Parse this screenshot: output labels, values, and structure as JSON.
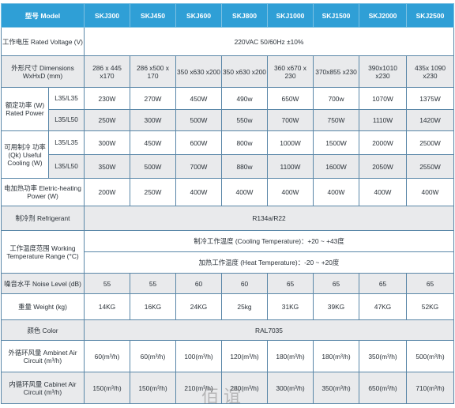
{
  "header": {
    "first": "型号 Model",
    "models": [
      "SKJ300",
      "SKJ450",
      "SKJ600",
      "SKJ800",
      "SKJ1000",
      "SKJ1500",
      "SKJ2000",
      "SKJ2500"
    ]
  },
  "rows": {
    "voltage": {
      "label": "工作电压 Rated Voltage (V)",
      "value": "220VAC 50/60Hz ±10%"
    },
    "dimensions": {
      "label": "外形尺寸 Dimensions WxHxD (mm)",
      "values": [
        "286 x 445 x170",
        "286 x500 x 170",
        "350 x630 x200",
        "350 x630 x200",
        "360 x670 x 230",
        "370x855 x230",
        "390x1010 x230",
        "435x 1090 x230"
      ]
    },
    "power": {
      "label": "额定功率 (W) Rated Power",
      "sub1": "L35/L35",
      "values1": [
        "230W",
        "270W",
        "450W",
        "490w",
        "650W",
        "700w",
        "1070W",
        "1375W"
      ],
      "sub2": "L35/L50",
      "values2": [
        "250W",
        "300W",
        "500W",
        "550w",
        "700W",
        "750W",
        "1110W",
        "1420W"
      ]
    },
    "cooling": {
      "label": "可用制冷 功率 (Qk) Useful Cooling (W)",
      "sub1": "L35/L35",
      "values1": [
        "300W",
        "450W",
        "600W",
        "800w",
        "1000W",
        "1500W",
        "2000W",
        "2500W"
      ],
      "sub2": "L35/L50",
      "values2": [
        "350W",
        "500W",
        "700W",
        "880w",
        "1100W",
        "1600W",
        "2050W",
        "2550W"
      ]
    },
    "heating": {
      "label": "电加热功率 Eletric-heating Power (W)",
      "values": [
        "200W",
        "250W",
        "400W",
        "400W",
        "400W",
        "400W",
        "400W",
        "400W"
      ]
    },
    "refrigerant": {
      "label": "制冷剂 Refrigerant",
      "value": "R134a/R22"
    },
    "temperature": {
      "label": "工作温度范围 Working Temperature Range (°C)",
      "cooling": "制冷工作温度 (Cooling Temperature)：+20 ~ +43度",
      "heating": "加热工作温度 (Heat Temperature)：-20 ~ +20度"
    },
    "noise": {
      "label": "噪音水平 Noise Level (dB)",
      "values": [
        "55",
        "55",
        "60",
        "60",
        "65",
        "65",
        "65",
        "65"
      ]
    },
    "weight": {
      "label": "重量 Weight (kg)",
      "values": [
        "14KG",
        "16KG",
        "24KG",
        "25kg",
        "31KG",
        "39KG",
        "47KG",
        "52KG"
      ]
    },
    "color": {
      "label": "颜色 Color",
      "value": "RAL7035"
    },
    "ambient_air": {
      "label": "外循环风量 Ambinet Air Circuit (m³/h)",
      "values": [
        "60(m³/h)",
        "60(m³/h)",
        "100(m³/h)",
        "120(m³/h)",
        "180(m³/h)",
        "180(m³/h)",
        "350(m³/h)",
        "500(m³/h)"
      ]
    },
    "cabinet_air": {
      "label": "内循环风量 Cabinet Air Circuit (m³/h)",
      "values": [
        "150(m³/h)",
        "150(m³/h)",
        "210(m³/h)",
        "280(m³/h)",
        "300(m³/h)",
        "350(m³/h)",
        "650(m³/h)",
        "710(m³/h)"
      ]
    }
  },
  "watermark": "佰谊",
  "colors": {
    "header_bg": "#2f9fd6",
    "border": "#5a87a8",
    "row_grey": "#e9eaec"
  }
}
